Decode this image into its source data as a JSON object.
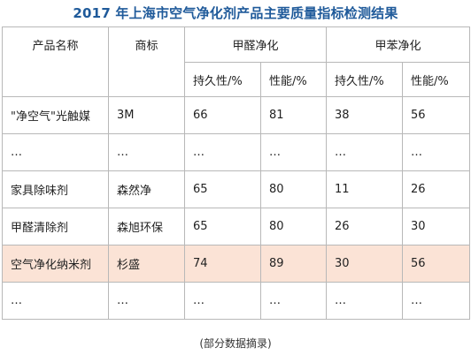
{
  "title": "2017 年上海市空气净化剂产品主要质量指标检测结果",
  "table": {
    "header": {
      "product_name": "产品名称",
      "brand": "商标",
      "formaldehyde_group": "甲醛净化",
      "benzene_group": "甲苯净化",
      "sub_headers": [
        "持久性/%",
        "性能/%",
        "持久性/%",
        "性能/%"
      ]
    },
    "rows": [
      {
        "product": "\"净空气\"光触媒",
        "brand": "3M",
        "hcho_durability": "66",
        "hcho_performance": "81",
        "benzene_durability": "38",
        "benzene_performance": "56",
        "highlight": false
      },
      {
        "product": "…",
        "brand": "…",
        "hcho_durability": "…",
        "hcho_performance": "…",
        "benzene_durability": "…",
        "benzene_performance": "…",
        "highlight": false
      },
      {
        "product": "家具除味剂",
        "brand": "森然净",
        "hcho_durability": "65",
        "hcho_performance": "80",
        "benzene_durability": "11",
        "benzene_performance": "26",
        "highlight": false
      },
      {
        "product": "甲醛清除剂",
        "brand": "森旭环保",
        "hcho_durability": "65",
        "hcho_performance": "80",
        "benzene_durability": "26",
        "benzene_performance": "30",
        "highlight": false
      },
      {
        "product": "空气净化纳米剂",
        "brand": "杉盛",
        "hcho_durability": "74",
        "hcho_performance": "89",
        "benzene_durability": "30",
        "benzene_performance": "56",
        "highlight": true
      },
      {
        "product": "…",
        "brand": "…",
        "hcho_durability": "…",
        "hcho_performance": "…",
        "benzene_durability": "…",
        "benzene_performance": "…",
        "highlight": false
      }
    ],
    "highlight_color": "#fbe3d6"
  },
  "footnote": "(部分数据摘录)",
  "colors": {
    "title": "#1f5a9a",
    "border": "#b8b8b8",
    "text": "#222222"
  }
}
